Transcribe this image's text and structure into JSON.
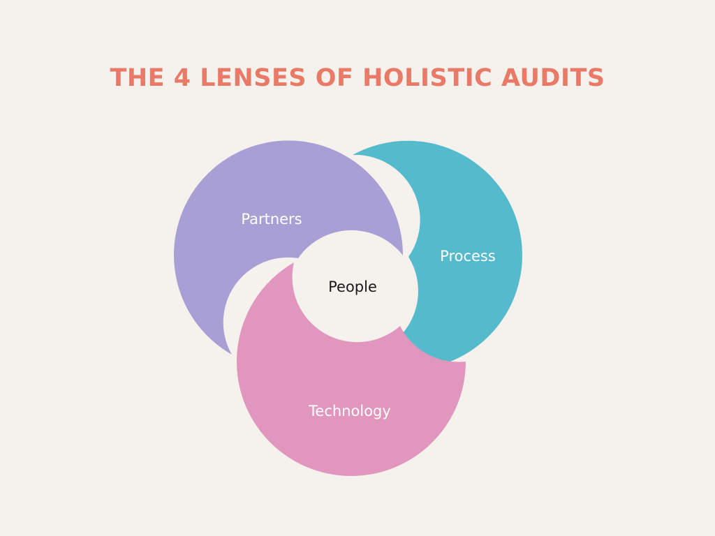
{
  "title": "THE 4 LENSES OF HOLISTIC AUDITS",
  "lenses": {
    "partners": {
      "label": "Partners",
      "color": "#a8a0d4"
    },
    "process": {
      "label": "Process",
      "color": "#55bacb"
    },
    "technology": {
      "label": "Technology",
      "color": "#e197bd"
    },
    "people": {
      "label": "People",
      "color": "#f5f2ee"
    }
  },
  "colors": {
    "background": "#f5f2ee",
    "title": "#e87a67",
    "label_on_shape": "#ffffff",
    "label_center": "#1a1a1a"
  }
}
